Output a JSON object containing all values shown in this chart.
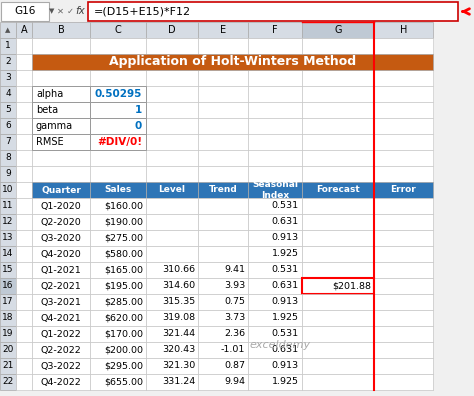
{
  "title": "Application of Holt-Winters Method",
  "title_bg": "#C55A11",
  "title_color": "white",
  "formula_bar_text": "=(D15+E15)*F12",
  "formula_bar_cell": "G16",
  "params": [
    [
      "alpha",
      "0.50295"
    ],
    [
      "beta",
      "1"
    ],
    [
      "gamma",
      "0"
    ],
    [
      "RMSE",
      "#DIV/0!"
    ]
  ],
  "param_value_color": "#0070C0",
  "header_bg": "#2E75B6",
  "header_color": "white",
  "headers": [
    "Quarter",
    "Sales",
    "Level",
    "Trend",
    "Seasonal\nIndex",
    "Forecast",
    "Error"
  ],
  "rows": [
    [
      "Q1-2020",
      "$160.00",
      "",
      "",
      "0.531",
      "",
      ""
    ],
    [
      "Q2-2020",
      "$190.00",
      "",
      "",
      "0.631",
      "",
      ""
    ],
    [
      "Q3-2020",
      "$275.00",
      "",
      "",
      "0.913",
      "",
      ""
    ],
    [
      "Q4-2020",
      "$580.00",
      "",
      "",
      "1.925",
      "",
      ""
    ],
    [
      "Q1-2021",
      "$165.00",
      "310.66",
      "9.41",
      "0.531",
      "",
      ""
    ],
    [
      "Q2-2021",
      "$195.00",
      "314.60",
      "3.93",
      "0.631",
      "$201.88",
      ""
    ],
    [
      "Q3-2021",
      "$285.00",
      "315.35",
      "0.75",
      "0.913",
      "",
      ""
    ],
    [
      "Q4-2021",
      "$620.00",
      "319.08",
      "3.73",
      "1.925",
      "",
      ""
    ],
    [
      "Q1-2022",
      "$170.00",
      "321.44",
      "2.36",
      "0.531",
      "",
      ""
    ],
    [
      "Q2-2022",
      "$200.00",
      "320.43",
      "-1.01",
      "0.631",
      "",
      ""
    ],
    [
      "Q3-2022",
      "$295.00",
      "321.30",
      "0.87",
      "0.913",
      "",
      ""
    ],
    [
      "Q4-2022",
      "$655.00",
      "331.24",
      "9.94",
      "1.925",
      "",
      ""
    ]
  ],
  "highlight_row": 5,
  "highlight_col": 5,
  "highlight_color": "#FF0000",
  "watermark": "exceldemy",
  "col_header_bg": "#D6DCE4",
  "col_header_selected_bg": "#BFC9D4",
  "row_num_bg": "#D6DCE4",
  "row_num_selected_bg": "#BFC9D4",
  "sheet_bg": "#FFFFFF",
  "grid_color": "#C0C0C0"
}
